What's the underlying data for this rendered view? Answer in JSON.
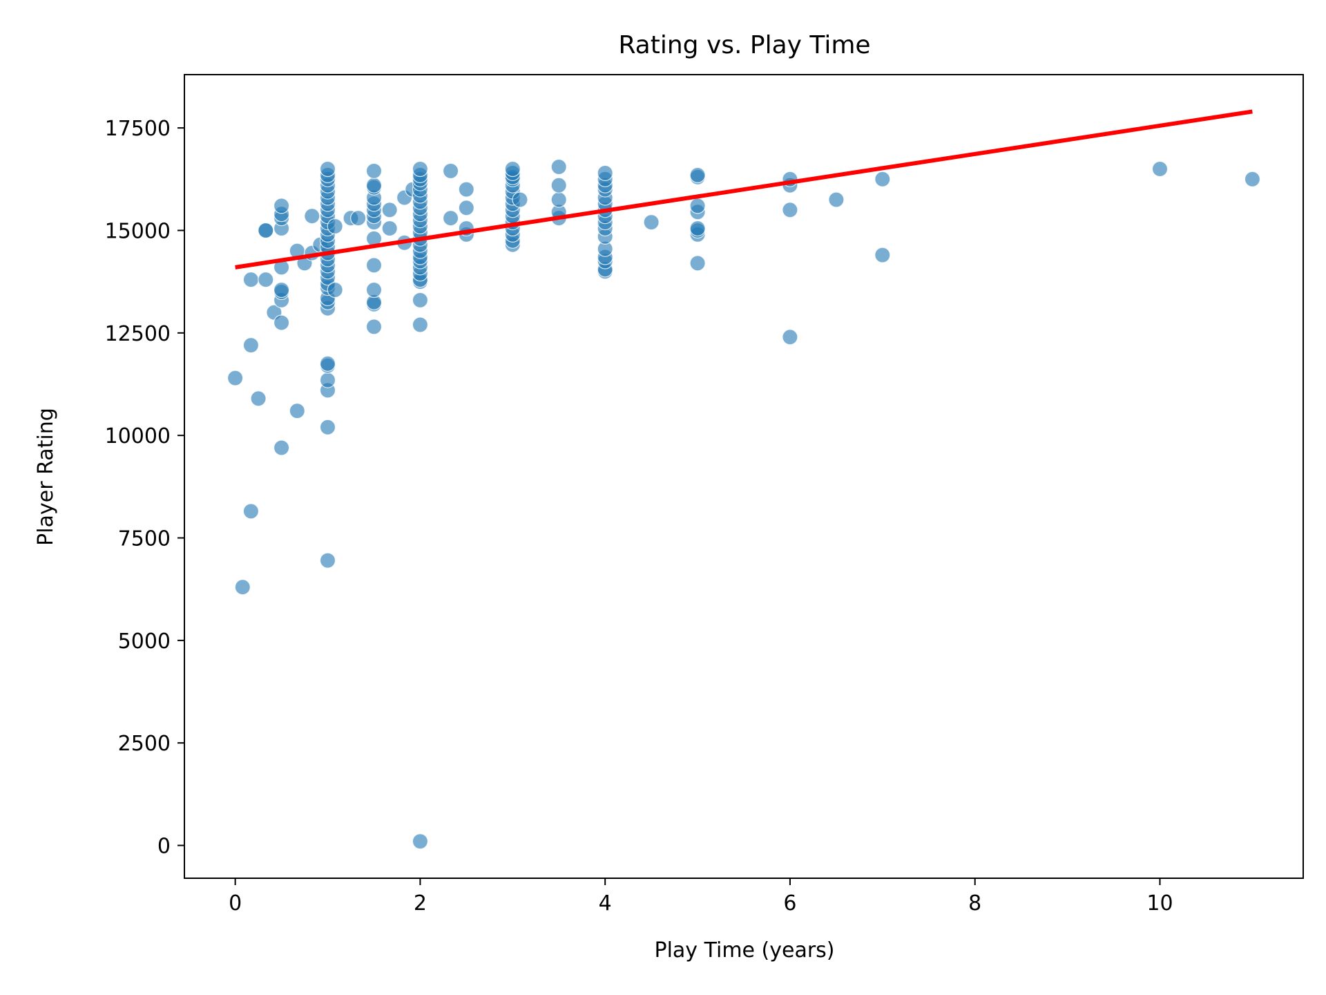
{
  "chart_data": {
    "type": "scatter",
    "title": "Rating vs. Play Time",
    "xlabel": "Play Time (years)",
    "ylabel": "Player Rating",
    "xlim": [
      -0.55,
      11.55
    ],
    "ylim": [
      -800,
      18800
    ],
    "x_ticks": [
      0,
      2,
      4,
      6,
      8,
      10
    ],
    "y_ticks": [
      0,
      2500,
      5000,
      7500,
      10000,
      12500,
      15000,
      17500
    ],
    "grid": false,
    "legend": "none",
    "point_color": "#1f77b4",
    "point_alpha": 0.6,
    "trend_color": "#ff0000",
    "trend_line": {
      "x": [
        0,
        11
      ],
      "y": [
        14100,
        17900
      ]
    },
    "points": [
      {
        "x": 0.0,
        "y": 11400
      },
      {
        "x": 0.08,
        "y": 6300
      },
      {
        "x": 0.17,
        "y": 8150
      },
      {
        "x": 0.17,
        "y": 12200
      },
      {
        "x": 0.17,
        "y": 13800
      },
      {
        "x": 0.25,
        "y": 10900
      },
      {
        "x": 0.33,
        "y": 15000
      },
      {
        "x": 0.33,
        "y": 15000
      },
      {
        "x": 0.33,
        "y": 13800
      },
      {
        "x": 0.42,
        "y": 13000
      },
      {
        "x": 0.5,
        "y": 9700
      },
      {
        "x": 0.5,
        "y": 12750
      },
      {
        "x": 0.5,
        "y": 13300
      },
      {
        "x": 0.5,
        "y": 13500
      },
      {
        "x": 0.5,
        "y": 13550
      },
      {
        "x": 0.5,
        "y": 14100
      },
      {
        "x": 0.5,
        "y": 15050
      },
      {
        "x": 0.5,
        "y": 15300
      },
      {
        "x": 0.5,
        "y": 15400
      },
      {
        "x": 0.5,
        "y": 15600
      },
      {
        "x": 0.67,
        "y": 10600
      },
      {
        "x": 0.67,
        "y": 14500
      },
      {
        "x": 0.75,
        "y": 14200
      },
      {
        "x": 0.83,
        "y": 15350
      },
      {
        "x": 0.83,
        "y": 14450
      },
      {
        "x": 0.92,
        "y": 14650
      },
      {
        "x": 1.0,
        "y": 6950
      },
      {
        "x": 1.0,
        "y": 10200
      },
      {
        "x": 1.0,
        "y": 11100
      },
      {
        "x": 1.0,
        "y": 11350
      },
      {
        "x": 1.0,
        "y": 11700
      },
      {
        "x": 1.0,
        "y": 11750
      },
      {
        "x": 1.0,
        "y": 13100
      },
      {
        "x": 1.0,
        "y": 13250
      },
      {
        "x": 1.0,
        "y": 13350
      },
      {
        "x": 1.0,
        "y": 13600
      },
      {
        "x": 1.0,
        "y": 13700
      },
      {
        "x": 1.0,
        "y": 13850
      },
      {
        "x": 1.0,
        "y": 14000
      },
      {
        "x": 1.0,
        "y": 14150
      },
      {
        "x": 1.0,
        "y": 14300
      },
      {
        "x": 1.0,
        "y": 14450
      },
      {
        "x": 1.0,
        "y": 14600
      },
      {
        "x": 1.0,
        "y": 14750
      },
      {
        "x": 1.0,
        "y": 14900
      },
      {
        "x": 1.0,
        "y": 15050
      },
      {
        "x": 1.0,
        "y": 15200
      },
      {
        "x": 1.0,
        "y": 15350
      },
      {
        "x": 1.0,
        "y": 15500
      },
      {
        "x": 1.0,
        "y": 15650
      },
      {
        "x": 1.0,
        "y": 15800
      },
      {
        "x": 1.0,
        "y": 15950
      },
      {
        "x": 1.0,
        "y": 16100
      },
      {
        "x": 1.0,
        "y": 16250
      },
      {
        "x": 1.0,
        "y": 16350
      },
      {
        "x": 1.0,
        "y": 16500
      },
      {
        "x": 1.08,
        "y": 13550
      },
      {
        "x": 1.08,
        "y": 15100
      },
      {
        "x": 1.25,
        "y": 15300
      },
      {
        "x": 1.33,
        "y": 15300
      },
      {
        "x": 1.5,
        "y": 12650
      },
      {
        "x": 1.5,
        "y": 13200
      },
      {
        "x": 1.5,
        "y": 13250
      },
      {
        "x": 1.5,
        "y": 13550
      },
      {
        "x": 1.5,
        "y": 14150
      },
      {
        "x": 1.5,
        "y": 14800
      },
      {
        "x": 1.5,
        "y": 15200
      },
      {
        "x": 1.5,
        "y": 15350
      },
      {
        "x": 1.5,
        "y": 15500
      },
      {
        "x": 1.5,
        "y": 15650
      },
      {
        "x": 1.5,
        "y": 15800
      },
      {
        "x": 1.5,
        "y": 16050
      },
      {
        "x": 1.5,
        "y": 16100
      },
      {
        "x": 1.5,
        "y": 16450
      },
      {
        "x": 1.67,
        "y": 15050
      },
      {
        "x": 1.67,
        "y": 15500
      },
      {
        "x": 1.83,
        "y": 14700
      },
      {
        "x": 1.83,
        "y": 15800
      },
      {
        "x": 1.92,
        "y": 16000
      },
      {
        "x": 2.0,
        "y": 100
      },
      {
        "x": 2.0,
        "y": 12700
      },
      {
        "x": 2.0,
        "y": 13300
      },
      {
        "x": 2.0,
        "y": 13750
      },
      {
        "x": 2.0,
        "y": 13800
      },
      {
        "x": 2.0,
        "y": 13950
      },
      {
        "x": 2.0,
        "y": 14100
      },
      {
        "x": 2.0,
        "y": 14250
      },
      {
        "x": 2.0,
        "y": 14350
      },
      {
        "x": 2.0,
        "y": 14500
      },
      {
        "x": 2.0,
        "y": 14650
      },
      {
        "x": 2.0,
        "y": 14800
      },
      {
        "x": 2.0,
        "y": 14950
      },
      {
        "x": 2.0,
        "y": 15100
      },
      {
        "x": 2.0,
        "y": 15250
      },
      {
        "x": 2.0,
        "y": 15400
      },
      {
        "x": 2.0,
        "y": 15550
      },
      {
        "x": 2.0,
        "y": 15700
      },
      {
        "x": 2.0,
        "y": 15850
      },
      {
        "x": 2.0,
        "y": 16000
      },
      {
        "x": 2.0,
        "y": 16150
      },
      {
        "x": 2.0,
        "y": 16250
      },
      {
        "x": 2.0,
        "y": 16350
      },
      {
        "x": 2.0,
        "y": 16500
      },
      {
        "x": 2.33,
        "y": 15300
      },
      {
        "x": 2.33,
        "y": 16450
      },
      {
        "x": 2.5,
        "y": 14900
      },
      {
        "x": 2.5,
        "y": 15050
      },
      {
        "x": 2.5,
        "y": 15550
      },
      {
        "x": 2.5,
        "y": 16000
      },
      {
        "x": 3.0,
        "y": 14650
      },
      {
        "x": 3.0,
        "y": 14750
      },
      {
        "x": 3.0,
        "y": 14900
      },
      {
        "x": 3.0,
        "y": 15050
      },
      {
        "x": 3.0,
        "y": 15200
      },
      {
        "x": 3.0,
        "y": 15350
      },
      {
        "x": 3.0,
        "y": 15500
      },
      {
        "x": 3.0,
        "y": 15650
      },
      {
        "x": 3.0,
        "y": 15800
      },
      {
        "x": 3.0,
        "y": 15950
      },
      {
        "x": 3.0,
        "y": 16100
      },
      {
        "x": 3.0,
        "y": 16250
      },
      {
        "x": 3.0,
        "y": 16300
      },
      {
        "x": 3.0,
        "y": 16400
      },
      {
        "x": 3.0,
        "y": 16500
      },
      {
        "x": 3.08,
        "y": 15750
      },
      {
        "x": 3.5,
        "y": 15300
      },
      {
        "x": 3.5,
        "y": 15450
      },
      {
        "x": 3.5,
        "y": 15750
      },
      {
        "x": 3.5,
        "y": 16100
      },
      {
        "x": 3.5,
        "y": 16550
      },
      {
        "x": 4.0,
        "y": 14000
      },
      {
        "x": 4.0,
        "y": 14050
      },
      {
        "x": 4.0,
        "y": 14250
      },
      {
        "x": 4.0,
        "y": 14350
      },
      {
        "x": 4.0,
        "y": 14550
      },
      {
        "x": 4.0,
        "y": 14850
      },
      {
        "x": 4.0,
        "y": 15050
      },
      {
        "x": 4.0,
        "y": 15200
      },
      {
        "x": 4.0,
        "y": 15350
      },
      {
        "x": 4.0,
        "y": 15500
      },
      {
        "x": 4.0,
        "y": 15650
      },
      {
        "x": 4.0,
        "y": 15800
      },
      {
        "x": 4.0,
        "y": 16000
      },
      {
        "x": 4.0,
        "y": 16100
      },
      {
        "x": 4.0,
        "y": 16250
      },
      {
        "x": 4.0,
        "y": 16400
      },
      {
        "x": 4.5,
        "y": 15200
      },
      {
        "x": 5.0,
        "y": 14200
      },
      {
        "x": 5.0,
        "y": 14900
      },
      {
        "x": 5.0,
        "y": 15000
      },
      {
        "x": 5.0,
        "y": 15050
      },
      {
        "x": 5.0,
        "y": 15450
      },
      {
        "x": 5.0,
        "y": 15600
      },
      {
        "x": 5.0,
        "y": 16300
      },
      {
        "x": 5.0,
        "y": 16350
      },
      {
        "x": 6.0,
        "y": 12400
      },
      {
        "x": 6.0,
        "y": 15500
      },
      {
        "x": 6.0,
        "y": 16100
      },
      {
        "x": 6.0,
        "y": 16250
      },
      {
        "x": 6.5,
        "y": 15750
      },
      {
        "x": 7.0,
        "y": 14400
      },
      {
        "x": 7.0,
        "y": 16250
      },
      {
        "x": 10.0,
        "y": 16500
      },
      {
        "x": 11.0,
        "y": 16250
      }
    ]
  }
}
